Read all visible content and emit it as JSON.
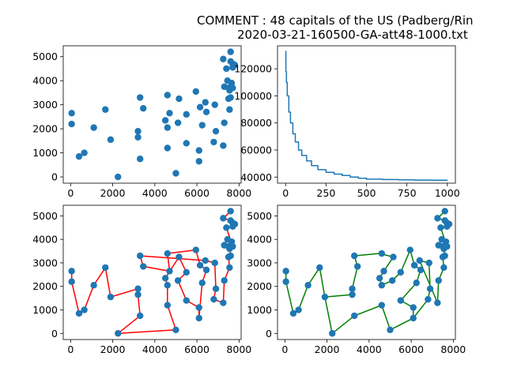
{
  "figure": {
    "title_line1": "COMMENT : 48 capitals of the US (Padberg/Rin",
    "title_line2": "2020-03-21-160500-GA-att48-1000.txt"
  },
  "colors": {
    "point": "#1f77b4",
    "convergence_line": "#1f77b4",
    "route_red": "#ff0000",
    "route_green": "#008000"
  },
  "chart_data": [
    {
      "type": "scatter",
      "panel": "cities",
      "xlim": [
        -350,
        8100
      ],
      "ylim": [
        -260,
        5450
      ],
      "xticks": [
        0,
        2000,
        4000,
        6000,
        8000
      ],
      "yticks": [
        0,
        1000,
        2000,
        3000,
        4000,
        5000
      ],
      "points": [
        [
          7600,
          5200
        ],
        [
          7250,
          4900
        ],
        [
          7600,
          4800
        ],
        [
          7700,
          4700
        ],
        [
          7800,
          4650
        ],
        [
          7700,
          4550
        ],
        [
          7400,
          4500
        ],
        [
          7450,
          4000
        ],
        [
          7650,
          3900
        ],
        [
          7550,
          3600
        ],
        [
          7300,
          3750
        ],
        [
          7500,
          3700
        ],
        [
          7700,
          3700
        ],
        [
          7600,
          3300
        ],
        [
          7500,
          3250
        ],
        [
          7550,
          2800
        ],
        [
          7300,
          2250
        ],
        [
          7250,
          1300
        ],
        [
          6800,
          1450
        ],
        [
          6900,
          1900
        ],
        [
          6850,
          3000
        ],
        [
          6400,
          3100
        ],
        [
          6450,
          2700
        ],
        [
          6150,
          2900
        ],
        [
          5950,
          3550
        ],
        [
          6250,
          2150
        ],
        [
          6100,
          1100
        ],
        [
          6100,
          650
        ],
        [
          5500,
          1400
        ],
        [
          5500,
          2600
        ],
        [
          5150,
          3250
        ],
        [
          5100,
          2250
        ],
        [
          4600,
          3400
        ],
        [
          4500,
          2350
        ],
        [
          4700,
          2650
        ],
        [
          4600,
          2050
        ],
        [
          4600,
          1200
        ],
        [
          5000,
          150
        ],
        [
          3300,
          3300
        ],
        [
          3450,
          2850
        ],
        [
          3200,
          1900
        ],
        [
          3200,
          1650
        ],
        [
          3300,
          750
        ],
        [
          2250,
          0
        ],
        [
          1900,
          1550
        ],
        [
          1650,
          2800
        ],
        [
          1100,
          2050
        ],
        [
          650,
          1000
        ],
        [
          400,
          850
        ],
        [
          50,
          2650
        ],
        [
          50,
          2200
        ]
      ]
    },
    {
      "type": "line",
      "panel": "convergence",
      "xlim": [
        -50,
        1050
      ],
      "ylim": [
        35500,
        137000
      ],
      "xticks": [
        0,
        250,
        500,
        750,
        1000
      ],
      "yticks": [
        40000,
        60000,
        80000,
        100000,
        120000
      ],
      "x": [
        0,
        2,
        5,
        10,
        20,
        30,
        45,
        60,
        80,
        100,
        130,
        160,
        200,
        250,
        300,
        350,
        400,
        450,
        500,
        600,
        700,
        800,
        900,
        1000
      ],
      "y": [
        133000,
        118000,
        110000,
        100000,
        88000,
        80000,
        72000,
        66000,
        60000,
        56000,
        52000,
        48500,
        45500,
        43500,
        42200,
        41200,
        40000,
        39200,
        38500,
        38200,
        38000,
        37800,
        37700,
        37600
      ]
    },
    {
      "type": "line",
      "panel": "route-red",
      "xlim": [
        -350,
        8100
      ],
      "ylim": [
        -260,
        5450
      ],
      "xticks": [
        0,
        2000,
        4000,
        6000,
        8000
      ],
      "yticks": [
        0,
        1000,
        2000,
        3000,
        4000,
        5000
      ],
      "route": [
        [
          50,
          2650
        ],
        [
          50,
          2200
        ],
        [
          400,
          850
        ],
        [
          650,
          1000
        ],
        [
          1100,
          2050
        ],
        [
          1650,
          2800
        ],
        [
          1900,
          1550
        ],
        [
          3200,
          1900
        ],
        [
          3200,
          1650
        ],
        [
          3300,
          750
        ],
        [
          2250,
          0
        ],
        [
          5000,
          150
        ],
        [
          4600,
          1200
        ],
        [
          4600,
          2050
        ],
        [
          4500,
          2350
        ],
        [
          5150,
          3250
        ],
        [
          5500,
          2600
        ],
        [
          5100,
          2250
        ],
        [
          5500,
          1400
        ],
        [
          6100,
          1100
        ],
        [
          6100,
          650
        ],
        [
          6250,
          2150
        ],
        [
          6450,
          2700
        ],
        [
          6150,
          2900
        ],
        [
          5950,
          3550
        ],
        [
          4600,
          3400
        ],
        [
          4700,
          2650
        ],
        [
          3450,
          2850
        ],
        [
          3300,
          3300
        ],
        [
          6400,
          3100
        ],
        [
          6850,
          3000
        ],
        [
          6900,
          1900
        ],
        [
          6800,
          1450
        ],
        [
          7250,
          1300
        ],
        [
          7300,
          2250
        ],
        [
          7550,
          2800
        ],
        [
          7500,
          3250
        ],
        [
          7600,
          3300
        ],
        [
          7550,
          3600
        ],
        [
          7650,
          3900
        ],
        [
          7450,
          4000
        ],
        [
          7300,
          3750
        ],
        [
          7500,
          3700
        ],
        [
          7700,
          3700
        ],
        [
          7400,
          4500
        ],
        [
          7700,
          4550
        ],
        [
          7800,
          4650
        ],
        [
          7700,
          4700
        ],
        [
          7600,
          4800
        ],
        [
          7250,
          4900
        ],
        [
          7600,
          5200
        ]
      ]
    },
    {
      "type": "line",
      "panel": "route-green",
      "xlim": [
        -350,
        8100
      ],
      "ylim": [
        -260,
        5450
      ],
      "xticks": [
        0,
        2000,
        4000,
        6000,
        8000
      ],
      "yticks": [
        0,
        1000,
        2000,
        3000,
        4000,
        5000
      ],
      "route": [
        [
          50,
          2650
        ],
        [
          50,
          2200
        ],
        [
          400,
          850
        ],
        [
          650,
          1000
        ],
        [
          1100,
          2050
        ],
        [
          1650,
          2800
        ],
        [
          1900,
          1550
        ],
        [
          3200,
          1650
        ],
        [
          3200,
          1900
        ],
        [
          3450,
          2850
        ],
        [
          3300,
          3300
        ],
        [
          4500,
          3400
        ],
        [
          5150,
          3250
        ],
        [
          4700,
          2650
        ],
        [
          4500,
          2350
        ],
        [
          4600,
          2050
        ],
        [
          5100,
          2250
        ],
        [
          5500,
          2600
        ],
        [
          5950,
          3550
        ],
        [
          6150,
          2900
        ],
        [
          6450,
          2700
        ],
        [
          6250,
          2150
        ],
        [
          5500,
          1400
        ],
        [
          6100,
          1100
        ],
        [
          6100,
          650
        ],
        [
          5000,
          150
        ],
        [
          4600,
          1200
        ],
        [
          3300,
          750
        ],
        [
          2250,
          0
        ],
        [
          1900,
          1550
        ]
      ]
    },
    {
      "type": "line",
      "panel": "route-green-east",
      "xlim": [
        -350,
        8100
      ],
      "ylim": [
        -260,
        5450
      ],
      "route": [
        [
          6100,
          650
        ],
        [
          6800,
          1450
        ],
        [
          6900,
          1900
        ],
        [
          6850,
          3000
        ],
        [
          6400,
          3100
        ],
        [
          7250,
          1300
        ],
        [
          7300,
          2250
        ],
        [
          7550,
          2800
        ],
        [
          7500,
          3250
        ],
        [
          7600,
          3300
        ],
        [
          7550,
          3600
        ],
        [
          7650,
          3900
        ],
        [
          7450,
          4000
        ],
        [
          7300,
          3750
        ],
        [
          7500,
          3700
        ],
        [
          7700,
          3700
        ],
        [
          7400,
          4500
        ],
        [
          7700,
          4550
        ],
        [
          7800,
          4650
        ],
        [
          7700,
          4700
        ],
        [
          7600,
          4800
        ],
        [
          7250,
          4900
        ],
        [
          7600,
          5200
        ]
      ]
    }
  ]
}
